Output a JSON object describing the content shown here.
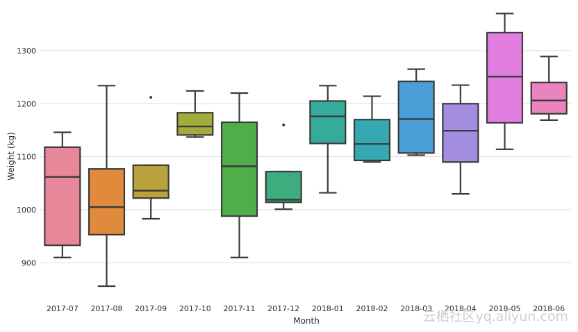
{
  "chart_data": {
    "type": "box",
    "title": "",
    "xlabel": "Month",
    "ylabel": "Weight (kg)",
    "ylim": [
      835,
      1385
    ],
    "yticks": [
      900,
      1000,
      1100,
      1200,
      1300
    ],
    "grid": true,
    "categories": [
      "2017-07",
      "2017-08",
      "2017-09",
      "2017-10",
      "2017-11",
      "2017-12",
      "2018-01",
      "2018-02",
      "2018-03",
      "2018-04",
      "2018-05",
      "2018-06"
    ],
    "boxes": [
      {
        "whisker_low": 910,
        "q1": 933,
        "median": 1062,
        "q3": 1118,
        "whisker_high": 1146,
        "outliers": [],
        "color": "#e8869a"
      },
      {
        "whisker_low": 856,
        "q1": 953,
        "median": 1005,
        "q3": 1077,
        "whisker_high": 1234,
        "outliers": [],
        "color": "#e08a3c"
      },
      {
        "whisker_low": 983,
        "q1": 1022,
        "median": 1036,
        "q3": 1084,
        "whisker_high": 1084,
        "outliers": [
          1212
        ],
        "color": "#b9a23c"
      },
      {
        "whisker_low": 1137,
        "q1": 1141,
        "median": 1157,
        "q3": 1183,
        "whisker_high": 1224,
        "outliers": [],
        "color": "#a1ac3a"
      },
      {
        "whisker_low": 910,
        "q1": 988,
        "median": 1082,
        "q3": 1165,
        "whisker_high": 1220,
        "outliers": [],
        "color": "#4fae4a"
      },
      {
        "whisker_low": 1001,
        "q1": 1014,
        "median": 1019,
        "q3": 1072,
        "whisker_high": 1072,
        "outliers": [
          1160
        ],
        "color": "#3dac7e"
      },
      {
        "whisker_low": 1032,
        "q1": 1125,
        "median": 1176,
        "q3": 1205,
        "whisker_high": 1234,
        "outliers": [],
        "color": "#35ab9a"
      },
      {
        "whisker_low": 1090,
        "q1": 1093,
        "median": 1124,
        "q3": 1170,
        "whisker_high": 1214,
        "outliers": [],
        "color": "#36a8b1"
      },
      {
        "whisker_low": 1103,
        "q1": 1107,
        "median": 1171,
        "q3": 1242,
        "whisker_high": 1265,
        "outliers": [],
        "color": "#4b9fd9"
      },
      {
        "whisker_low": 1030,
        "q1": 1090,
        "median": 1149,
        "q3": 1200,
        "whisker_high": 1235,
        "outliers": [],
        "color": "#a28de0"
      },
      {
        "whisker_low": 1114,
        "q1": 1164,
        "median": 1251,
        "q3": 1334,
        "whisker_high": 1370,
        "outliers": [],
        "color": "#e27ee0"
      },
      {
        "whisker_low": 1169,
        "q1": 1181,
        "median": 1206,
        "q3": 1240,
        "whisker_high": 1289,
        "outliers": [],
        "color": "#ea83be"
      }
    ]
  },
  "watermark": "云栖社区yq.aliyun.com",
  "colors": {
    "background": "#ffffff",
    "plot_background": "#ffffff",
    "grid": "#dddddd",
    "box_stroke": "#3b3b3b"
  }
}
